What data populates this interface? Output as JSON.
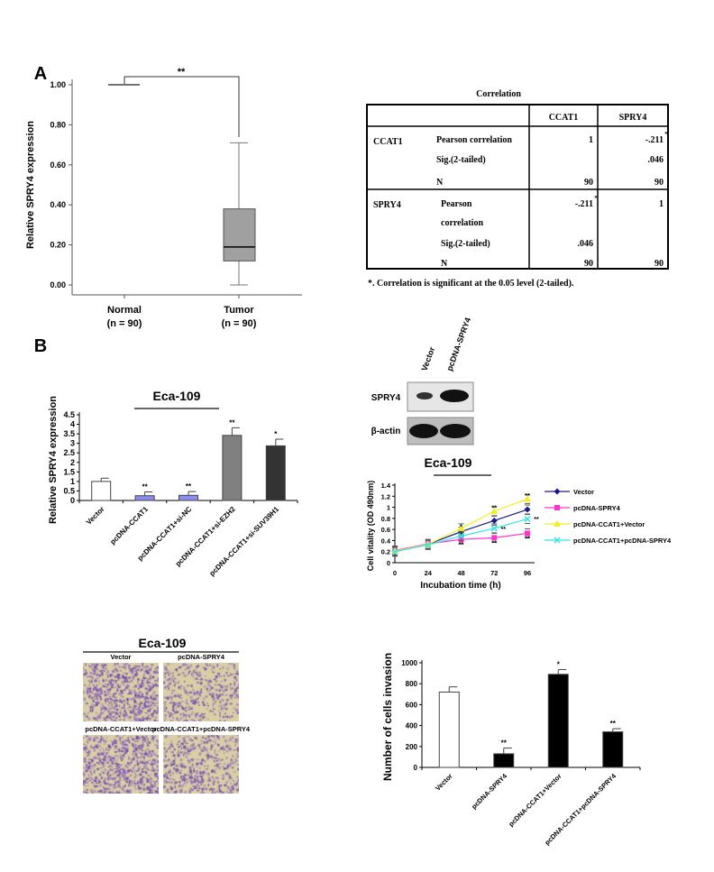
{
  "panel_labels": [
    "A",
    "B"
  ],
  "chart_data": [
    {
      "id": "boxplot",
      "type": "box",
      "ylabel": "Relative SPRY4 expression",
      "ylim": [
        0,
        1.0
      ],
      "yticks": [
        "0.00",
        "0.20",
        "0.40",
        "0.60",
        "0.80",
        "1.00"
      ],
      "categories": [
        {
          "name": "Normal",
          "n": "(n = 90)",
          "min": 1.0,
          "q1": 1.0,
          "median": 1.0,
          "q3": 1.0,
          "max": 1.0
        },
        {
          "name": "Tumor",
          "n": "(n = 90)",
          "min": 0.0,
          "q1": 0.12,
          "median": 0.19,
          "q3": 0.38,
          "max": 0.71
        }
      ],
      "significance": "**",
      "box_color": "#a0a0a0"
    },
    {
      "id": "spry4-bar",
      "type": "bar",
      "title": "Eca-109",
      "ylabel": "Relative SPRY4 expression",
      "ylim": [
        0,
        4.5
      ],
      "yticks": [
        "0",
        "0.5",
        "1",
        "1.5",
        "2",
        "2.5",
        "3",
        "3.5",
        "4",
        "4.5"
      ],
      "categories": [
        "Vector",
        "pcDNA-CCAT1",
        "pcDNA-CCAT1+si-NC",
        "pcDNA-CCAT1+si-EZH2",
        "pcDNA-CCAT1+si-SUV39H1"
      ],
      "values": [
        1.0,
        0.25,
        0.27,
        3.42,
        2.87
      ],
      "errors": [
        0.17,
        0.2,
        0.2,
        0.4,
        0.35
      ],
      "significance": [
        "",
        "**",
        "**",
        "**",
        "*"
      ],
      "colors": [
        "#ffffff",
        "#8c8cf0",
        "#8c8cf0",
        "#808080",
        "#333333"
      ]
    },
    {
      "id": "cell-vitality",
      "type": "line",
      "title": "Eca-109",
      "xlabel": "Incubation time (h)",
      "ylabel": "Cell vitality (OD 490nm)",
      "x": [
        0,
        24,
        48,
        72,
        96
      ],
      "xticks": [
        "0",
        "24",
        "48",
        "72",
        "96"
      ],
      "ylim": [
        0,
        1.4
      ],
      "yticks": [
        "0",
        "0.2",
        "0.4",
        "0.6",
        "0.8",
        "1",
        "1.2",
        "1.4"
      ],
      "legend_position": "right",
      "series": [
        {
          "name": "Vector",
          "values": [
            0.2,
            0.33,
            0.56,
            0.76,
            0.96
          ],
          "color": "#1a1a8c",
          "marker": "diamond"
        },
        {
          "name": "pcDNA-SPRY4",
          "values": [
            0.22,
            0.34,
            0.42,
            0.45,
            0.53
          ],
          "color": "#ff33cc",
          "marker": "square"
        },
        {
          "name": "pcDNA-CCAT1+Vector",
          "values": [
            0.21,
            0.33,
            0.62,
            0.93,
            1.15
          ],
          "color": "#f0f020",
          "marker": "triangle"
        },
        {
          "name": "pcDNA-CCAT1+pcDNA-SPRY4",
          "values": [
            0.2,
            0.32,
            0.48,
            0.62,
            0.79
          ],
          "color": "#33e6e6",
          "marker": "x"
        }
      ],
      "annotations": [
        {
          "x": 48,
          "text": "*"
        },
        {
          "x": 48,
          "text": "**"
        },
        {
          "x": 72,
          "text": "**"
        },
        {
          "x": 72,
          "text": "**"
        },
        {
          "x": 72,
          "text": "**"
        },
        {
          "x": 96,
          "text": "**"
        },
        {
          "x": 96,
          "text": "**"
        },
        {
          "x": 96,
          "text": "**"
        }
      ]
    },
    {
      "id": "invasion-bar",
      "type": "bar",
      "ylabel": "Number of cells invasion",
      "ylim": [
        0,
        1000
      ],
      "yticks": [
        "0",
        "200",
        "400",
        "600",
        "800",
        "1000"
      ],
      "categories": [
        "Vector",
        "pcDNA-SPRY4",
        "pcDNA-CCAT1+Vector",
        "pcDNA-CCAT1+pcDNA-SPRY4"
      ],
      "values": [
        720,
        130,
        890,
        340
      ],
      "errors": [
        50,
        55,
        45,
        30
      ],
      "significance": [
        "",
        "**",
        "*",
        "**"
      ],
      "colors": [
        "#ffffff",
        "#000000",
        "#000000",
        "#000000"
      ]
    }
  ],
  "correlation_table": {
    "title": "Correlation",
    "col_headers": [
      "CCAT1",
      "SPRY4"
    ],
    "rows": [
      {
        "var": "CCAT1",
        "lines": [
          {
            "stat": "Pearson correlation",
            "c1": "1",
            "c2": "-.211",
            "c2sup": "*"
          },
          {
            "stat": "Sig.(2-tailed)",
            "c1": "",
            "c2": ".046"
          },
          {
            "stat": "N",
            "c1": "90",
            "c2": "90"
          }
        ]
      },
      {
        "var": "SPRY4",
        "lines": [
          {
            "stat": "Pearson",
            "c1": "-.211",
            "c1sup": "*",
            "c2": "1"
          },
          {
            "stat": "correlation",
            "c1": "",
            "c2": ""
          },
          {
            "stat": "Sig.(2-tailed)",
            "c1": ".046",
            "c2": ""
          },
          {
            "stat": "N",
            "c1": "90",
            "c2": "90"
          }
        ]
      }
    ],
    "footnote": "*. Correlation is significant at the 0.05 level (2-tailed)."
  },
  "western_blot": {
    "lanes": [
      "Vector",
      "pcDNA-SPRY4"
    ],
    "bands": [
      "SPRY4",
      "β-actin"
    ]
  },
  "transwell": {
    "title": "Eca-109",
    "images": [
      "Vector",
      "pcDNA-SPRY4",
      "pcDNA-CCAT1+Vector",
      "pcDNA-CCAT1+pcDNA-SPRY4"
    ],
    "densities": [
      0.8,
      0.45,
      0.85,
      0.55
    ]
  }
}
